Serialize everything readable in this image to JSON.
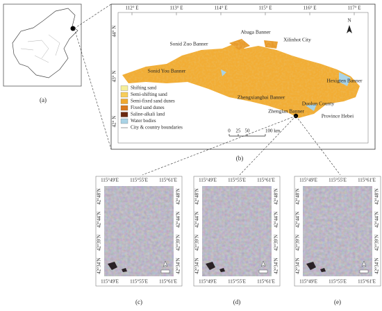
{
  "panel_a": {
    "label": "(a)"
  },
  "panel_b": {
    "lon_labels": [
      "112° E",
      "113° E",
      "114° E",
      "115° E",
      "116° E",
      "117° E"
    ],
    "lat_labels": [
      "44° N",
      "43° N",
      "42° N"
    ],
    "places": [
      "Sonid Zuo Banner",
      "Abaga Banner",
      "Xilinhot City",
      "Sonid You Banner",
      "Zhengxiangbai Banner",
      "Zhenglan Banner",
      "Hexigten Banner",
      "Duolun County",
      "Province Hebei"
    ],
    "legend": [
      {
        "label": "Shifting sand",
        "color": "#f5ee9a"
      },
      {
        "label": "Semi-shifting sand",
        "color": "#f7cd5a"
      },
      {
        "label": "Semi-fixed sand dunes",
        "color": "#f0a830"
      },
      {
        "label": "Fixed sand dunes",
        "color": "#d9781e"
      },
      {
        "label": "Saline-alkali land",
        "color": "#6b2a12"
      },
      {
        "label": "Water bodies",
        "color": "#a9d3e6"
      },
      {
        "label": "City & country boundaries",
        "color": "#9a9a9a"
      }
    ],
    "scale": [
      "0",
      "25",
      "50",
      "100 km"
    ],
    "north": "N",
    "label": "(b)"
  },
  "subpanels": {
    "lon_labels": [
      "115°49′E",
      "115°55′E",
      "115°61′E"
    ],
    "lat_labels": [
      "42°48′N",
      "42°44′N",
      "42°39′N",
      "42°34′N"
    ],
    "panels": [
      {
        "label": "(c)"
      },
      {
        "label": "(d)"
      },
      {
        "label": "(e)"
      }
    ]
  }
}
